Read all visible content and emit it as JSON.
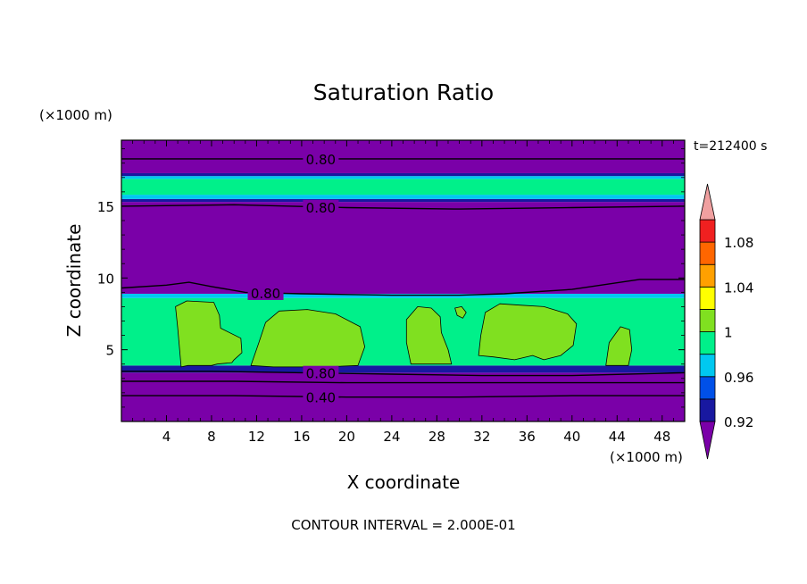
{
  "chart_data": {
    "type": "heatmap",
    "title": "Saturation Ratio",
    "time_label": "t=212400 s",
    "xlabel": "X coordinate",
    "ylabel": "Z coordinate",
    "x_unit": "(×1000 m)",
    "y_unit": "(×1000 m)",
    "xlim": [
      0,
      50
    ],
    "ylim": [
      0,
      19.6
    ],
    "x_ticks": [
      4,
      8,
      12,
      16,
      20,
      24,
      28,
      32,
      36,
      40,
      44,
      48
    ],
    "y_ticks": [
      5,
      10,
      15
    ],
    "footer": "CONTOUR INTERVAL = 2.000E-01",
    "colorbar": {
      "levels": [
        0.92,
        0.94,
        0.96,
        0.98,
        1.0,
        1.02,
        1.04,
        1.06,
        1.08,
        1.1
      ],
      "colors": [
        "#7a00a8",
        "#1818a0",
        "#0050e8",
        "#00c8f0",
        "#00f08a",
        "#80e020",
        "#ffff00",
        "#ffa000",
        "#ff6600",
        "#f02020",
        "#f0a0a0"
      ],
      "tick_labels": [
        "0.92",
        "0.96",
        "1",
        "1.04",
        "1.08"
      ]
    },
    "bands": [
      {
        "z0": 0,
        "z1": 3.4,
        "value": 0.5
      },
      {
        "z0": 3.4,
        "z1": 3.9,
        "value": 0.93
      },
      {
        "z0": 3.9,
        "z1": 8.6,
        "value": 0.99
      },
      {
        "z0": 8.6,
        "z1": 8.9,
        "value": 0.96
      },
      {
        "z0": 8.9,
        "z1": 15.3,
        "value": 0.8
      },
      {
        "z0": 15.3,
        "z1": 15.5,
        "value": 0.93
      },
      {
        "z0": 15.5,
        "z1": 15.8,
        "value": 0.96
      },
      {
        "z0": 15.8,
        "z1": 16.9,
        "value": 0.985
      },
      {
        "z0": 16.9,
        "z1": 17.1,
        "value": 0.96
      },
      {
        "z0": 17.1,
        "z1": 17.3,
        "value": 0.93
      },
      {
        "z0": 17.3,
        "z1": 19.6,
        "value": 0.8
      }
    ],
    "patches": [
      {
        "value": 1.01,
        "points": [
          [
            5.3,
            3.8
          ],
          [
            5.0,
            6.5
          ],
          [
            4.8,
            8.0
          ],
          [
            5.8,
            8.4
          ],
          [
            8.2,
            8.3
          ],
          [
            8.7,
            7.4
          ],
          [
            8.8,
            6.5
          ],
          [
            10.6,
            5.8
          ],
          [
            10.7,
            4.8
          ],
          [
            10.0,
            4.3
          ],
          [
            9.8,
            4.1
          ],
          [
            8.5,
            4.0
          ],
          [
            8.0,
            3.9
          ],
          [
            5.9,
            3.9
          ]
        ]
      },
      {
        "value": 1.01,
        "points": [
          [
            11.5,
            3.9
          ],
          [
            12.2,
            5.5
          ],
          [
            12.8,
            6.9
          ],
          [
            14.0,
            7.7
          ],
          [
            16.5,
            7.8
          ],
          [
            19.0,
            7.5
          ],
          [
            21.2,
            6.6
          ],
          [
            21.6,
            5.2
          ],
          [
            21.0,
            3.9
          ],
          [
            18.0,
            3.8
          ],
          [
            13.5,
            3.8
          ]
        ]
      },
      {
        "value": 1.01,
        "points": [
          [
            25.7,
            4.0
          ],
          [
            25.3,
            5.5
          ],
          [
            25.3,
            7.1
          ],
          [
            26.3,
            8.0
          ],
          [
            27.5,
            7.9
          ],
          [
            28.3,
            7.3
          ],
          [
            28.4,
            6.2
          ],
          [
            29.0,
            5.0
          ],
          [
            29.3,
            4.0
          ]
        ]
      },
      {
        "value": 1.01,
        "points": [
          [
            29.8,
            7.4
          ],
          [
            29.6,
            7.9
          ],
          [
            30.2,
            8.0
          ],
          [
            30.6,
            7.6
          ],
          [
            30.3,
            7.2
          ]
        ]
      },
      {
        "value": 1.01,
        "points": [
          [
            31.7,
            4.6
          ],
          [
            31.9,
            6.0
          ],
          [
            32.3,
            7.6
          ],
          [
            33.6,
            8.2
          ],
          [
            35.5,
            8.1
          ],
          [
            37.5,
            8.0
          ],
          [
            39.6,
            7.5
          ],
          [
            40.4,
            6.8
          ],
          [
            40.1,
            5.3
          ],
          [
            39.0,
            4.6
          ],
          [
            37.5,
            4.3
          ],
          [
            36.5,
            4.6
          ],
          [
            34.9,
            4.3
          ],
          [
            33.0,
            4.5
          ]
        ]
      },
      {
        "value": 1.01,
        "points": [
          [
            43.0,
            3.9
          ],
          [
            43.3,
            5.5
          ],
          [
            44.3,
            6.6
          ],
          [
            45.1,
            6.4
          ],
          [
            45.3,
            5.0
          ],
          [
            45.0,
            3.9
          ]
        ]
      }
    ],
    "contours": [
      {
        "label": "0.80",
        "label_x": 17.7,
        "points": [
          [
            0,
            18.3
          ],
          [
            50,
            18.3
          ]
        ]
      },
      {
        "label": "0.80",
        "label_x": 17.7,
        "points": [
          [
            0,
            15.0
          ],
          [
            10,
            15.1
          ],
          [
            20,
            14.9
          ],
          [
            30,
            14.8
          ],
          [
            40,
            14.9
          ],
          [
            50,
            15.0
          ]
        ]
      },
      {
        "label": "0.80",
        "label_x": 12.8,
        "points": [
          [
            0,
            9.3
          ],
          [
            4,
            9.5
          ],
          [
            6,
            9.7
          ],
          [
            8,
            9.4
          ],
          [
            11,
            9.0
          ],
          [
            16,
            8.9
          ],
          [
            24,
            8.8
          ],
          [
            30,
            8.8
          ],
          [
            34,
            8.9
          ],
          [
            40,
            9.2
          ],
          [
            46,
            9.9
          ],
          [
            50,
            9.9
          ]
        ]
      },
      {
        "label": "0.80",
        "label_x": 17.7,
        "points": [
          [
            0,
            3.5
          ],
          [
            8,
            3.5
          ],
          [
            16,
            3.4
          ],
          [
            24,
            3.3
          ],
          [
            32,
            3.2
          ],
          [
            40,
            3.2
          ],
          [
            50,
            3.4
          ]
        ]
      },
      {
        "label": "",
        "label_x": 0,
        "points": [
          [
            0,
            2.8
          ],
          [
            10,
            2.8
          ],
          [
            20,
            2.7
          ],
          [
            30,
            2.7
          ],
          [
            40,
            2.7
          ],
          [
            50,
            2.7
          ]
        ]
      },
      {
        "label": "0.40",
        "label_x": 17.7,
        "points": [
          [
            0,
            1.8
          ],
          [
            10,
            1.8
          ],
          [
            20,
            1.7
          ],
          [
            30,
            1.7
          ],
          [
            40,
            1.8
          ],
          [
            50,
            1.8
          ]
        ]
      }
    ]
  }
}
